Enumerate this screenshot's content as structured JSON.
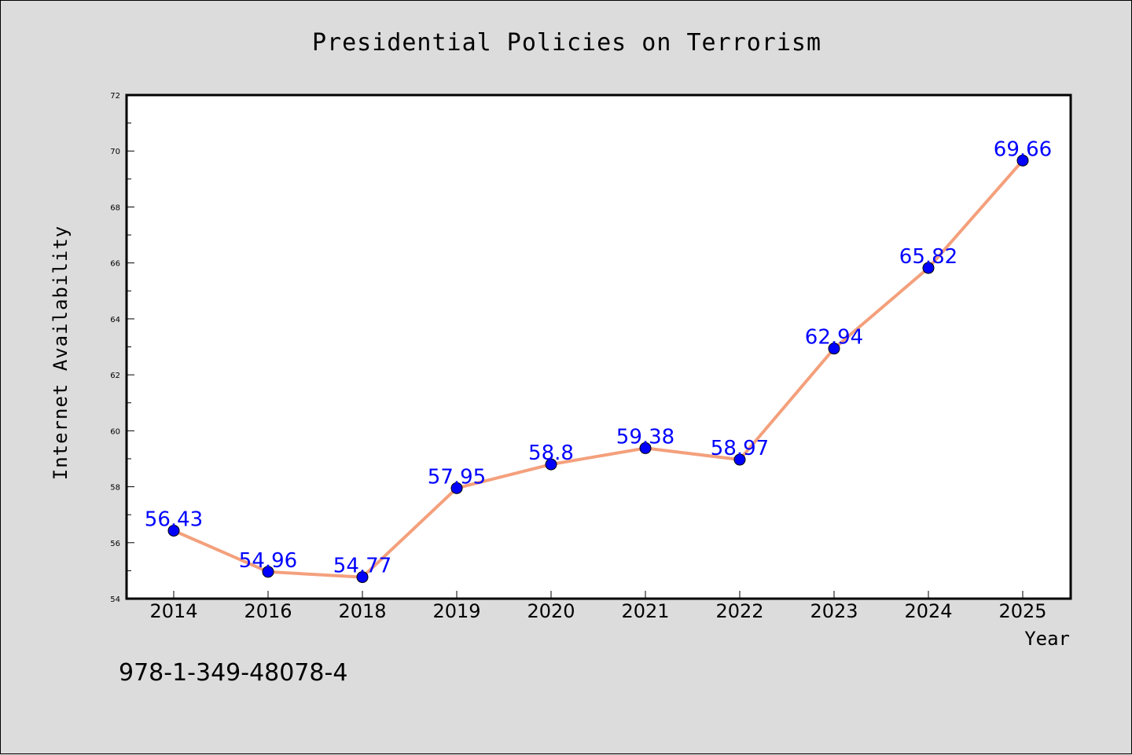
{
  "chart_data": {
    "type": "line",
    "title": "Presidential Policies on Terrorism",
    "xlabel": "Year",
    "ylabel": "Internet Availability",
    "categories": [
      "2014",
      "2016",
      "2018",
      "2019",
      "2020",
      "2021",
      "2022",
      "2023",
      "2024",
      "2025"
    ],
    "series": [
      {
        "values": [
          56.43,
          54.96,
          54.77,
          57.95,
          58.8,
          59.38,
          58.97,
          62.94,
          65.82,
          69.66
        ],
        "labels": [
          "56.43",
          "54.96",
          "54.77",
          "57.95",
          "58.8",
          "59.38",
          "58.97",
          "62.94",
          "65.82",
          "69.66"
        ]
      }
    ],
    "ylim": [
      54,
      72
    ],
    "yticks": [
      "54",
      "56",
      "58",
      "60",
      "62",
      "64",
      "66",
      "68",
      "70",
      "72"
    ],
    "grid": false,
    "line_color": "#f4a07c",
    "marker_color": "#0000ff",
    "label_color": "#0000ff",
    "background": "#dcdcdc"
  },
  "footnote": "978-1-349-48078-4"
}
